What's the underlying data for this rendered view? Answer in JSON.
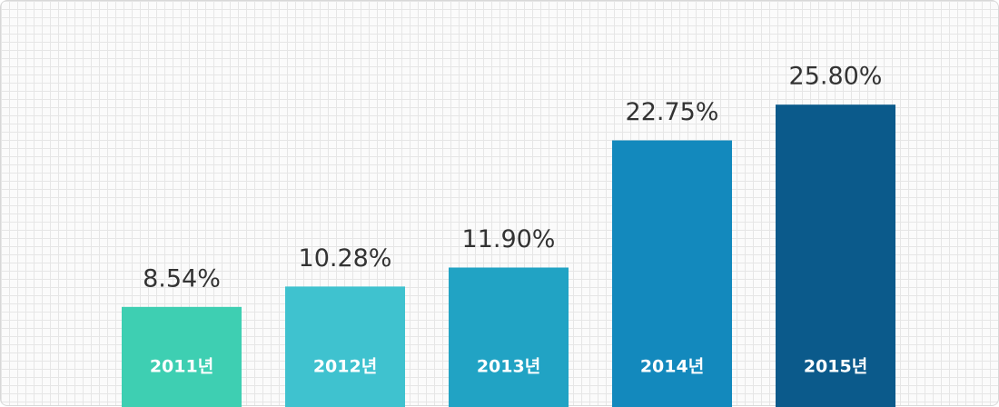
{
  "chart_data": {
    "type": "bar",
    "categories": [
      "2011년",
      "2012년",
      "2013년",
      "2014년",
      "2015년"
    ],
    "values": [
      8.54,
      10.28,
      11.9,
      22.75,
      25.8
    ],
    "value_labels": [
      "8.54%",
      "10.28%",
      "11.90%",
      "22.75%",
      "25.80%"
    ],
    "colors": [
      "#3ecfb2",
      "#3fc2cf",
      "#21a3c4",
      "#1389bd",
      "#0b5a8b"
    ],
    "ylim": [
      0,
      30
    ]
  }
}
